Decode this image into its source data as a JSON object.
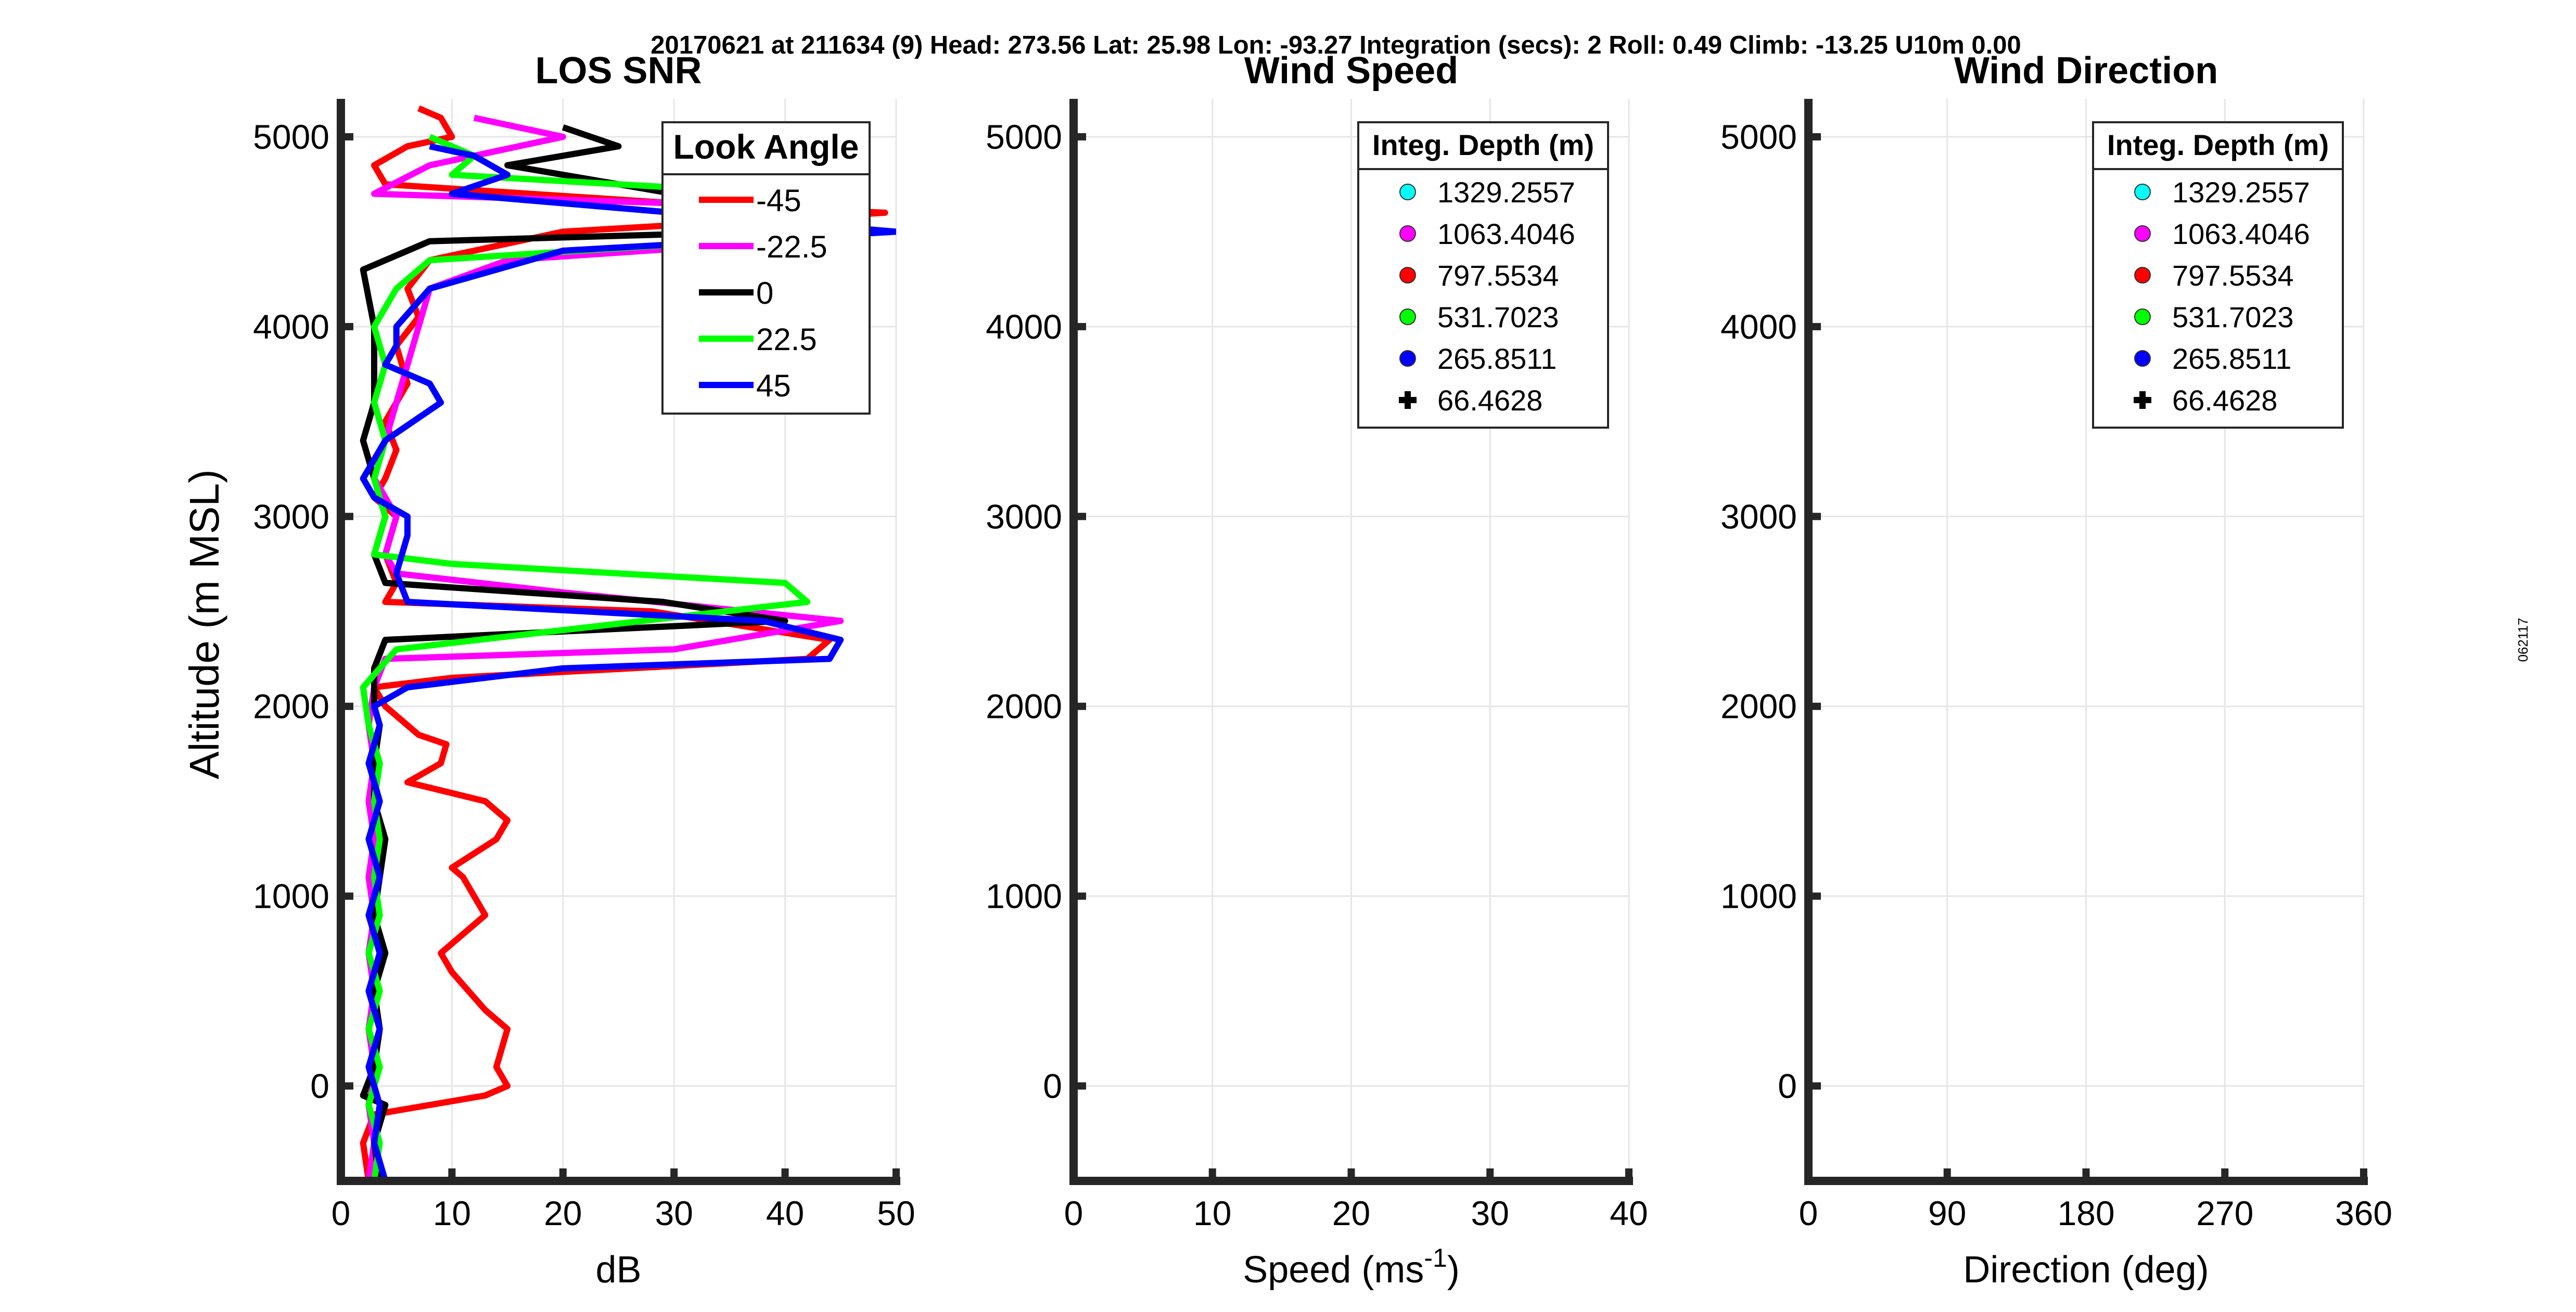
{
  "header_text": "20170621 at 211634 (9)  Head: 273.56  Lat: 25.98  Lon: -93.27  Integration (secs): 2  Roll: 0.49  Climb: -13.25  U10m 0.00",
  "side_label": "062117",
  "colors": {
    "red": "#ff0000",
    "magenta": "#ff00ff",
    "black": "#000000",
    "green": "#00ff00",
    "blue": "#0000ff",
    "cyan": "#00ffff",
    "axis": "#262626",
    "grid": "#e6e6e6"
  },
  "chart_data": [
    {
      "type": "line",
      "title": "LOS SNR",
      "xlabel": "dB",
      "ylabel": "Altitude (m MSL)",
      "xlim": [
        0,
        50
      ],
      "ylim": [
        -500,
        5200
      ],
      "xticks": [
        0,
        10,
        20,
        30,
        40,
        50
      ],
      "yticks": [
        0,
        1000,
        2000,
        3000,
        4000,
        5000
      ],
      "grid": true,
      "legend": {
        "title": "Look Angle",
        "location": "top-right"
      },
      "series": [
        {
          "name": "-45",
          "color": "#ff0000",
          "points": [
            [
              2.5,
              -500
            ],
            [
              2,
              -300
            ],
            [
              3,
              -150
            ],
            [
              13,
              -50
            ],
            [
              15,
              0
            ],
            [
              14,
              100
            ],
            [
              15,
              300
            ],
            [
              13,
              400
            ],
            [
              10,
              600
            ],
            [
              9,
              700
            ],
            [
              13,
              900
            ],
            [
              11,
              1100
            ],
            [
              10,
              1150
            ],
            [
              14,
              1300
            ],
            [
              15,
              1400
            ],
            [
              13,
              1500
            ],
            [
              6,
              1600
            ],
            [
              9,
              1700
            ],
            [
              9.5,
              1800
            ],
            [
              7,
              1850
            ],
            [
              4,
              2000
            ],
            [
              3,
              2100
            ],
            [
              10,
              2150
            ],
            [
              42,
              2250
            ],
            [
              44,
              2350
            ],
            [
              28,
              2500
            ],
            [
              4,
              2550
            ],
            [
              5,
              2650
            ],
            [
              4,
              2800
            ],
            [
              5,
              3000
            ],
            [
              3,
              3100
            ],
            [
              4,
              3200
            ],
            [
              5,
              3350
            ],
            [
              4,
              3500
            ],
            [
              6,
              3700
            ],
            [
              5,
              3900
            ],
            [
              7,
              4050
            ],
            [
              6,
              4200
            ],
            [
              8,
              4350
            ],
            [
              20,
              4500
            ],
            [
              49,
              4600
            ],
            [
              30,
              4650
            ],
            [
              4,
              4750
            ],
            [
              3,
              4850
            ],
            [
              6,
              4950
            ],
            [
              10,
              5000
            ],
            [
              9,
              5100
            ],
            [
              7,
              5150
            ]
          ]
        },
        {
          "name": "-22.5",
          "color": "#ff00ff",
          "points": [
            [
              2.5,
              -500
            ],
            [
              3,
              -300
            ],
            [
              2.5,
              -100
            ],
            [
              3,
              100
            ],
            [
              2.5,
              300
            ],
            [
              3,
              500
            ],
            [
              2.5,
              700
            ],
            [
              3,
              900
            ],
            [
              2.5,
              1100
            ],
            [
              3,
              1300
            ],
            [
              2.5,
              1500
            ],
            [
              3,
              1700
            ],
            [
              2.5,
              1900
            ],
            [
              3,
              2100
            ],
            [
              4,
              2250
            ],
            [
              30,
              2300
            ],
            [
              45,
              2450
            ],
            [
              20,
              2600
            ],
            [
              5,
              2700
            ],
            [
              4,
              2800
            ],
            [
              5,
              3000
            ],
            [
              3,
              3200
            ],
            [
              4,
              3400
            ],
            [
              5,
              3600
            ],
            [
              6,
              3800
            ],
            [
              7,
              4000
            ],
            [
              8,
              4200
            ],
            [
              15,
              4350
            ],
            [
              40,
              4450
            ],
            [
              30,
              4650
            ],
            [
              3,
              4700
            ],
            [
              8,
              4850
            ],
            [
              20,
              5000
            ],
            [
              12,
              5100
            ]
          ]
        },
        {
          "name": "0",
          "color": "#000000",
          "points": [
            [
              3.5,
              -500
            ],
            [
              3,
              -300
            ],
            [
              4,
              -100
            ],
            [
              2,
              -50
            ],
            [
              3,
              100
            ],
            [
              3.5,
              300
            ],
            [
              3,
              500
            ],
            [
              4,
              700
            ],
            [
              3,
              900
            ],
            [
              3.5,
              1100
            ],
            [
              4,
              1300
            ],
            [
              3,
              1500
            ],
            [
              3,
              1700
            ],
            [
              3.5,
              1900
            ],
            [
              3,
              2000
            ],
            [
              3,
              2200
            ],
            [
              4,
              2350
            ],
            [
              40,
              2450
            ],
            [
              29,
              2550
            ],
            [
              4,
              2650
            ],
            [
              3,
              2800
            ],
            [
              4,
              3000
            ],
            [
              3,
              3200
            ],
            [
              2,
              3400
            ],
            [
              3,
              3600
            ],
            [
              3,
              3800
            ],
            [
              3,
              4000
            ],
            [
              2,
              4300
            ],
            [
              8,
              4450
            ],
            [
              38,
              4500
            ],
            [
              30,
              4700
            ],
            [
              15,
              4850
            ],
            [
              25,
              4950
            ],
            [
              20,
              5050
            ]
          ]
        },
        {
          "name": "22.5",
          "color": "#00ff00",
          "points": [
            [
              3,
              -500
            ],
            [
              3.5,
              -300
            ],
            [
              2.5,
              -100
            ],
            [
              3.5,
              100
            ],
            [
              2.5,
              300
            ],
            [
              3.5,
              500
            ],
            [
              2.5,
              700
            ],
            [
              3.5,
              900
            ],
            [
              3,
              1100
            ],
            [
              3.5,
              1300
            ],
            [
              3,
              1500
            ],
            [
              3.5,
              1700
            ],
            [
              2.5,
              1900
            ],
            [
              2,
              2100
            ],
            [
              5,
              2300
            ],
            [
              42,
              2550
            ],
            [
              40,
              2650
            ],
            [
              10,
              2750
            ],
            [
              3,
              2800
            ],
            [
              4,
              3000
            ],
            [
              3,
              3200
            ],
            [
              4,
              3400
            ],
            [
              3,
              3600
            ],
            [
              4,
              3800
            ],
            [
              3,
              4000
            ],
            [
              5,
              4200
            ],
            [
              8,
              4350
            ],
            [
              35,
              4450
            ],
            [
              40,
              4700
            ],
            [
              10,
              4800
            ],
            [
              12,
              4900
            ],
            [
              8,
              5000
            ]
          ]
        },
        {
          "name": "45",
          "color": "#0000ff",
          "points": [
            [
              4,
              -500
            ],
            [
              3,
              -300
            ],
            [
              3.5,
              -100
            ],
            [
              2.5,
              100
            ],
            [
              3.5,
              300
            ],
            [
              2.5,
              500
            ],
            [
              3.5,
              700
            ],
            [
              2.5,
              900
            ],
            [
              3.5,
              1100
            ],
            [
              2.5,
              1300
            ],
            [
              3.5,
              1500
            ],
            [
              2.5,
              1700
            ],
            [
              3.5,
              1900
            ],
            [
              3,
              2000
            ],
            [
              6,
              2100
            ],
            [
              20,
              2200
            ],
            [
              44,
              2250
            ],
            [
              45,
              2350
            ],
            [
              38,
              2450
            ],
            [
              6,
              2550
            ],
            [
              5,
              2700
            ],
            [
              6,
              2900
            ],
            [
              6,
              3000
            ],
            [
              3,
              3100
            ],
            [
              2,
              3200
            ],
            [
              4,
              3400
            ],
            [
              9,
              3600
            ],
            [
              8,
              3700
            ],
            [
              4,
              3800
            ],
            [
              5,
              3900
            ],
            [
              5,
              4000
            ],
            [
              8,
              4200
            ],
            [
              20,
              4400
            ],
            [
              50,
              4500
            ],
            [
              10,
              4700
            ],
            [
              15,
              4800
            ],
            [
              12,
              4900
            ],
            [
              8,
              4950
            ]
          ]
        }
      ]
    },
    {
      "type": "scatter",
      "title": "Wind Speed",
      "xlabel": "Speed (ms",
      "xlabel_sup": "-1",
      "xlabel_end": ")",
      "xlim": [
        0,
        40
      ],
      "ylim": [
        -500,
        5200
      ],
      "xticks": [
        0,
        10,
        20,
        30,
        40
      ],
      "yticks": [
        0,
        1000,
        2000,
        3000,
        4000,
        5000
      ],
      "grid": true,
      "legend": {
        "title": "Integ. Depth (m)",
        "location": "top-right"
      },
      "series": [
        {
          "name": "1329.2557",
          "color": "#00ffff",
          "marker": "circle",
          "points": []
        },
        {
          "name": "1063.4046",
          "color": "#ff00ff",
          "marker": "circle",
          "points": []
        },
        {
          "name": "797.5534",
          "color": "#ff0000",
          "marker": "circle",
          "points": []
        },
        {
          "name": "531.7023",
          "color": "#00ff00",
          "marker": "circle",
          "points": []
        },
        {
          "name": "265.8511",
          "color": "#0000ff",
          "marker": "circle",
          "points": []
        },
        {
          "name": "66.4628",
          "color": "#000000",
          "marker": "plus",
          "points": []
        }
      ]
    },
    {
      "type": "scatter",
      "title": "Wind Direction",
      "xlabel": "Direction (deg)",
      "xlim": [
        0,
        360
      ],
      "ylim": [
        -500,
        5200
      ],
      "xticks": [
        0,
        90,
        180,
        270,
        360
      ],
      "yticks": [
        0,
        1000,
        2000,
        3000,
        4000,
        5000
      ],
      "grid": true,
      "legend": {
        "title": "Integ. Depth (m)",
        "location": "top-right"
      },
      "series": [
        {
          "name": "1329.2557",
          "color": "#00ffff",
          "marker": "circle",
          "points": []
        },
        {
          "name": "1063.4046",
          "color": "#ff00ff",
          "marker": "circle",
          "points": []
        },
        {
          "name": "797.5534",
          "color": "#ff0000",
          "marker": "circle",
          "points": []
        },
        {
          "name": "531.7023",
          "color": "#00ff00",
          "marker": "circle",
          "points": []
        },
        {
          "name": "265.8511",
          "color": "#0000ff",
          "marker": "circle",
          "points": []
        },
        {
          "name": "66.4628",
          "color": "#000000",
          "marker": "plus",
          "points": []
        }
      ]
    }
  ]
}
